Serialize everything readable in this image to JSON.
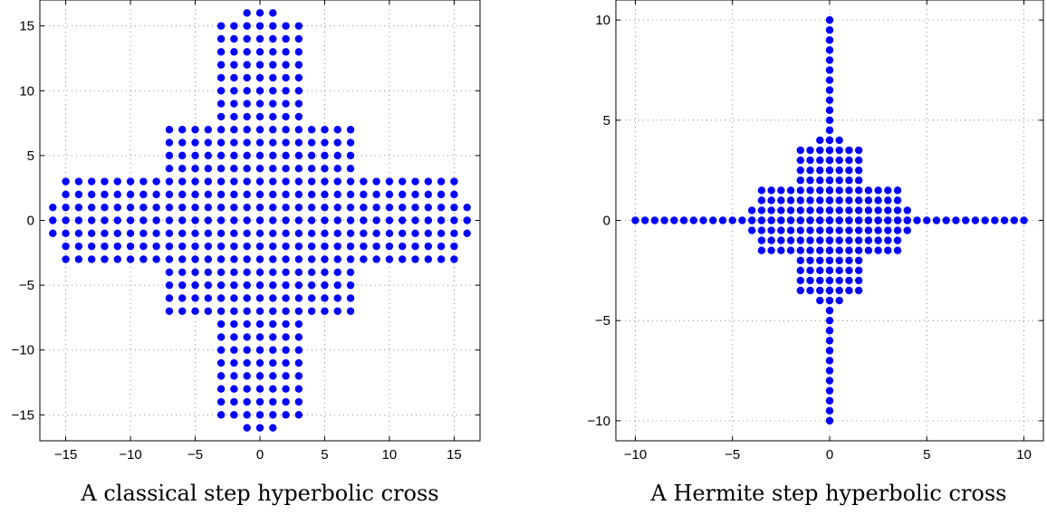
{
  "chart_data": [
    {
      "type": "scatter",
      "title": "",
      "caption": "A classical step hyperbolic cross",
      "xlabel": "",
      "ylabel": "",
      "xlim": [
        -17,
        17
      ],
      "ylim": [
        -17,
        17
      ],
      "xticks": [
        -15,
        -10,
        -5,
        0,
        5,
        10,
        15
      ],
      "yticks": [
        -15,
        -10,
        -5,
        0,
        5,
        10,
        15
      ],
      "xtick_labels": [
        "−15",
        "−10",
        "−5",
        "0",
        "5",
        "10",
        "15"
      ],
      "ytick_labels": [
        "−15",
        "−10",
        "−5",
        "0",
        "5",
        "10",
        "15"
      ],
      "grid": true,
      "marker_color": "#0000ff",
      "generator": "integer lattice points (x,y) with |x|<=16 and |y|<=16 satisfying max(1,2^floor(log2|x|)) * max(1,2^floor(log2|y|)) <= 16"
    },
    {
      "type": "scatter",
      "title": "",
      "caption": "A Hermite step hyperbolic cross",
      "xlabel": "",
      "ylabel": "",
      "xlim": [
        -11,
        11
      ],
      "ylim": [
        -11,
        11
      ],
      "xticks": [
        -10,
        -5,
        0,
        5,
        10
      ],
      "yticks": [
        -10,
        -5,
        0,
        5,
        10
      ],
      "xtick_labels": [
        "−10",
        "−5",
        "0",
        "5",
        "10"
      ],
      "ytick_labels": [
        "−10",
        "−5",
        "0",
        "5",
        "10"
      ],
      "grid": true,
      "marker_color": "#0000ff",
      "generator": "points (sign(x)*sqrt(|x|), sign(y)*sqrt(|y|)) * 10/sqrt(100) mapped from classical step hyperbolic cross with sqrt-scaled coordinates, range [-10,10]"
    }
  ]
}
